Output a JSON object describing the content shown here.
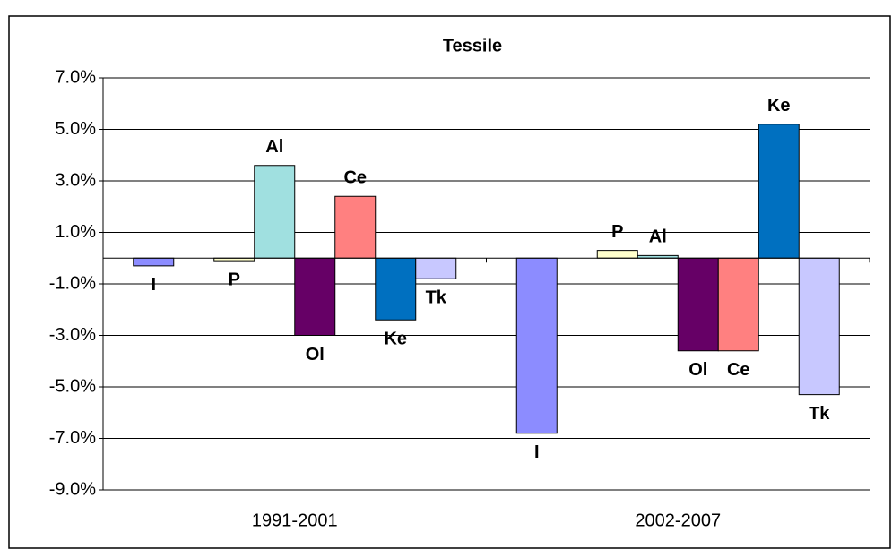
{
  "chart_data": {
    "type": "bar",
    "title": "Tessile",
    "categories": [
      "1991-2001",
      "2002-2007"
    ],
    "series": [
      {
        "name": "I",
        "color": "#8c8cff",
        "values": [
          -0.3,
          -6.8
        ]
      },
      {
        "name": "P",
        "color": "#ffffcc",
        "values": [
          -0.1,
          0.3
        ]
      },
      {
        "name": "Al",
        "color": "#a0e0e0",
        "values": [
          3.6,
          0.1
        ]
      },
      {
        "name": "Ol",
        "color": "#660066",
        "values": [
          -3.0,
          -3.6
        ]
      },
      {
        "name": "Ce",
        "color": "#ff8080",
        "values": [
          2.4,
          -3.6
        ]
      },
      {
        "name": "Ke",
        "color": "#0070c0",
        "values": [
          -2.4,
          5.2
        ]
      },
      {
        "name": "Tk",
        "color": "#c8c8ff",
        "values": [
          -0.8,
          -5.3
        ]
      }
    ],
    "ylim": [
      -9,
      7
    ],
    "yticks": [
      {
        "value": -9,
        "label": "-9.0%"
      },
      {
        "value": -7,
        "label": "-7.0%"
      },
      {
        "value": -5,
        "label": "-5.0%"
      },
      {
        "value": -3,
        "label": "-3.0%"
      },
      {
        "value": -1,
        "label": "-1.0%"
      },
      {
        "value": 1,
        "label": "1.0%"
      },
      {
        "value": 3,
        "label": "3.0%"
      },
      {
        "value": 5,
        "label": "5.0%"
      },
      {
        "value": 7,
        "label": "7.0%"
      }
    ],
    "grid": true
  }
}
